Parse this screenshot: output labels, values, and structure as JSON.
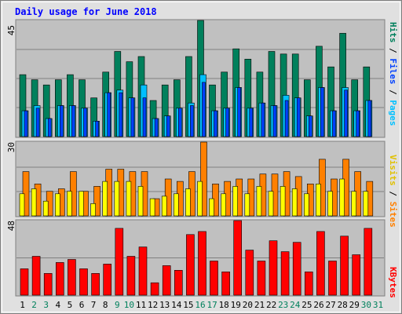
{
  "title": "Daily usage for June 2018",
  "colors": {
    "hits": "#00805c",
    "files": "#00c0ff",
    "pages": "#0040ff",
    "visits": "#ffff00",
    "sites": "#ff8000",
    "kbytes": "#ff0000",
    "title": "#0000ff",
    "weekend": "#00805c",
    "weekday": "#000000",
    "plot_bg": "#c0c0c0",
    "page_bg": "#ffffff"
  },
  "chart_data": [
    {
      "type": "bar",
      "title": "Daily usage for June 2018",
      "categories": [
        "1",
        "2",
        "3",
        "4",
        "5",
        "6",
        "7",
        "8",
        "9",
        "10",
        "11",
        "12",
        "13",
        "14",
        "15",
        "16",
        "17",
        "18",
        "19",
        "20",
        "21",
        "22",
        "23",
        "24",
        "25",
        "26",
        "27",
        "28",
        "29",
        "30",
        "31"
      ],
      "weekend_days": [
        "2",
        "3",
        "9",
        "10",
        "16",
        "17",
        "23",
        "24",
        "30",
        "31"
      ],
      "ylim": [
        0,
        45
      ],
      "ytick_label": "45",
      "grid": true,
      "right_labels": [
        "Pages",
        "Files",
        "Hits"
      ],
      "series": [
        {
          "name": "Hits",
          "values": [
            24,
            22,
            20,
            22,
            24,
            22,
            15,
            25,
            33,
            29,
            31,
            14,
            20,
            22,
            31,
            45,
            20,
            25,
            34,
            30,
            25,
            33,
            32,
            32,
            22,
            35,
            27,
            40,
            22,
            27,
            0
          ]
        },
        {
          "name": "Files",
          "values": [
            10,
            12,
            7,
            12,
            12,
            11,
            6,
            17,
            18,
            15,
            20,
            7,
            8,
            11,
            13,
            24,
            10,
            11,
            19,
            11,
            13,
            12,
            16,
            15,
            8,
            19,
            10,
            19,
            10,
            14,
            0
          ]
        },
        {
          "name": "Pages",
          "values": [
            10,
            11,
            7,
            12,
            12,
            11,
            6,
            17,
            17,
            15,
            15,
            7,
            8,
            11,
            12,
            21,
            10,
            11,
            19,
            11,
            13,
            12,
            14,
            15,
            8,
            19,
            10,
            18,
            10,
            14,
            0
          ]
        }
      ]
    },
    {
      "type": "bar",
      "categories": [
        "1",
        "2",
        "3",
        "4",
        "5",
        "6",
        "7",
        "8",
        "9",
        "10",
        "11",
        "12",
        "13",
        "14",
        "15",
        "16",
        "17",
        "18",
        "19",
        "20",
        "21",
        "22",
        "23",
        "24",
        "25",
        "26",
        "27",
        "28",
        "29",
        "30",
        "31"
      ],
      "ylim": [
        0,
        30
      ],
      "ytick_label": "30",
      "grid": true,
      "right_labels": [
        "Sites",
        "Visits"
      ],
      "series": [
        {
          "name": "Sites",
          "values": [
            18,
            13,
            10,
            11,
            18,
            10,
            12,
            19,
            19,
            18,
            18,
            7,
            15,
            14,
            18,
            30,
            13,
            14,
            15,
            15,
            17,
            17,
            18,
            16,
            13,
            23,
            15,
            23,
            18,
            14,
            0
          ]
        },
        {
          "name": "Visits",
          "values": [
            9,
            11,
            6,
            9,
            10,
            10,
            5,
            14,
            14,
            14,
            12,
            7,
            8,
            9,
            11,
            14,
            7,
            9,
            12,
            9,
            12,
            10,
            12,
            11,
            9,
            13,
            10,
            15,
            10,
            10,
            0
          ]
        }
      ]
    },
    {
      "type": "bar",
      "categories": [
        "1",
        "2",
        "3",
        "4",
        "5",
        "6",
        "7",
        "8",
        "9",
        "10",
        "11",
        "12",
        "13",
        "14",
        "15",
        "16",
        "17",
        "18",
        "19",
        "20",
        "21",
        "22",
        "23",
        "24",
        "25",
        "26",
        "27",
        "28",
        "29",
        "30",
        "31"
      ],
      "ylim": [
        0,
        48
      ],
      "ytick_label": "48",
      "grid": true,
      "right_labels": [
        "KBytes"
      ],
      "series": [
        {
          "name": "KBytes",
          "values": [
            17,
            25,
            14,
            21,
            23,
            17,
            14,
            20,
            43,
            25,
            31,
            8,
            19,
            16,
            39,
            41,
            22,
            15,
            48,
            29,
            22,
            35,
            28,
            34,
            15,
            41,
            22,
            38,
            26,
            43,
            0
          ]
        }
      ]
    }
  ]
}
